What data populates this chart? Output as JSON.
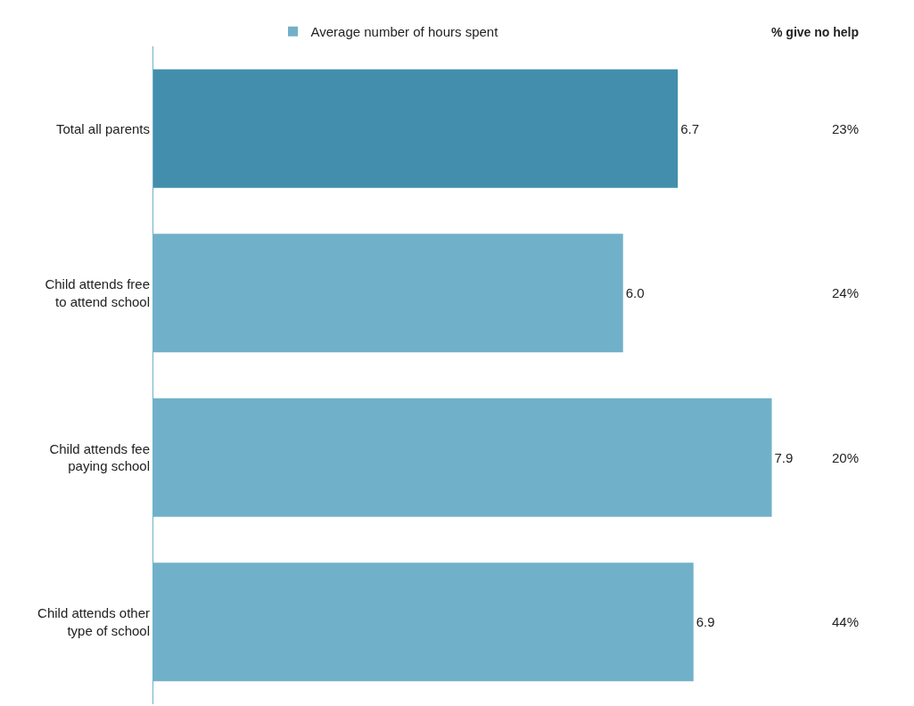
{
  "chart_data": {
    "type": "bar",
    "orientation": "horizontal",
    "categories": [
      "Total all parents",
      "Child attends free to attend school",
      "Child attends fee paying school",
      "Child attends other type of school"
    ],
    "series": [
      {
        "name": "Average number of hours spent",
        "color": "#71b0c9",
        "colors": [
          "#438ead",
          "#71b0c9",
          "#71b0c9",
          "#71b0c9"
        ],
        "values": [
          6.7,
          6.0,
          7.9,
          6.9
        ],
        "value_labels": [
          "6.7",
          "6.0",
          "7.9",
          "6.9"
        ]
      }
    ],
    "legend": "top",
    "grid": false,
    "annotations": [
      "% give no help",
      "23%",
      "24%",
      "20%",
      "44%"
    ]
  }
}
